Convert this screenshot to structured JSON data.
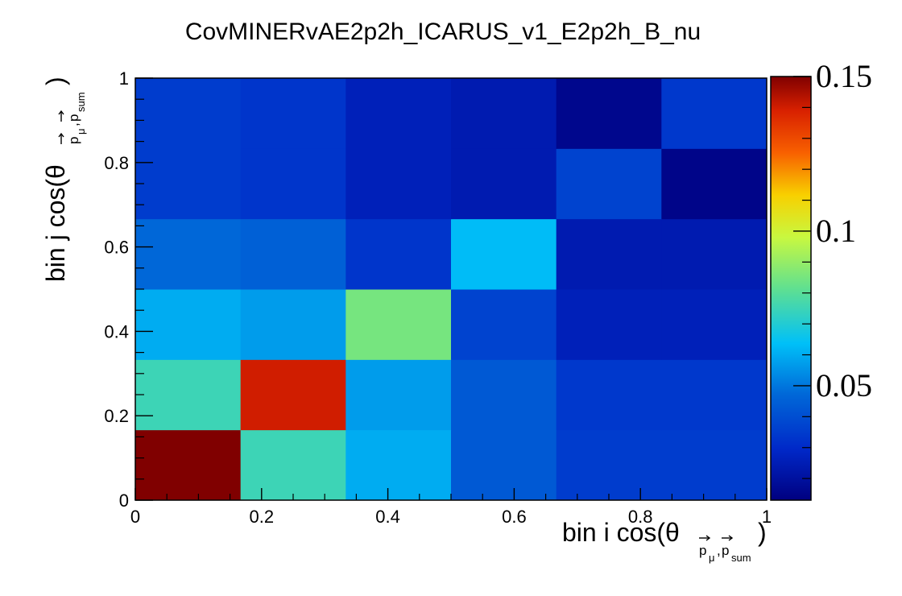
{
  "chart_data": {
    "type": "heatmap",
    "title": "CovMINERvAE2p2h_ICARUS_v1_E2p2h_B_nu",
    "xlabel": {
      "main": "bin i cos(θ",
      "sub": "p",
      "sub2": "μ",
      "comma": ",",
      "sub3": "p",
      "sub4": "sum",
      "close": ")"
    },
    "ylabel": {
      "main": "bin j cos(θ",
      "sub": "p",
      "sub2": "μ",
      "comma": ",",
      "sub3": "p",
      "sub4": "sum",
      "close": ")"
    },
    "xlim": [
      0,
      1
    ],
    "ylim": [
      0,
      1
    ],
    "zlim": [
      0.013,
      0.15
    ],
    "x_ticks": [
      "0",
      "0.2",
      "0.4",
      "0.6",
      "0.8",
      "1"
    ],
    "y_ticks": [
      "0",
      "0.2",
      "0.4",
      "0.6",
      "0.8",
      "1"
    ],
    "z_ticks": [
      "0.05",
      "0.1",
      "0.15"
    ],
    "x_edges": [
      0,
      0.1667,
      0.3333,
      0.5,
      0.6667,
      0.8333,
      1.0
    ],
    "y_edges": [
      0,
      0.1667,
      0.3333,
      0.5,
      0.6667,
      0.8333,
      1.0
    ],
    "values": [
      [
        0.15,
        0.075,
        0.06,
        0.043,
        0.035,
        0.035
      ],
      [
        0.075,
        0.14,
        0.057,
        0.043,
        0.034,
        0.034
      ],
      [
        0.06,
        0.057,
        0.085,
        0.037,
        0.026,
        0.026
      ],
      [
        0.047,
        0.045,
        0.033,
        0.063,
        0.024,
        0.024
      ],
      [
        0.035,
        0.033,
        0.026,
        0.024,
        0.037,
        0.015
      ],
      [
        0.035,
        0.033,
        0.026,
        0.024,
        0.016,
        0.034
      ]
    ],
    "colormap": "rainbow (ROOT palette 55)",
    "grid": false
  }
}
